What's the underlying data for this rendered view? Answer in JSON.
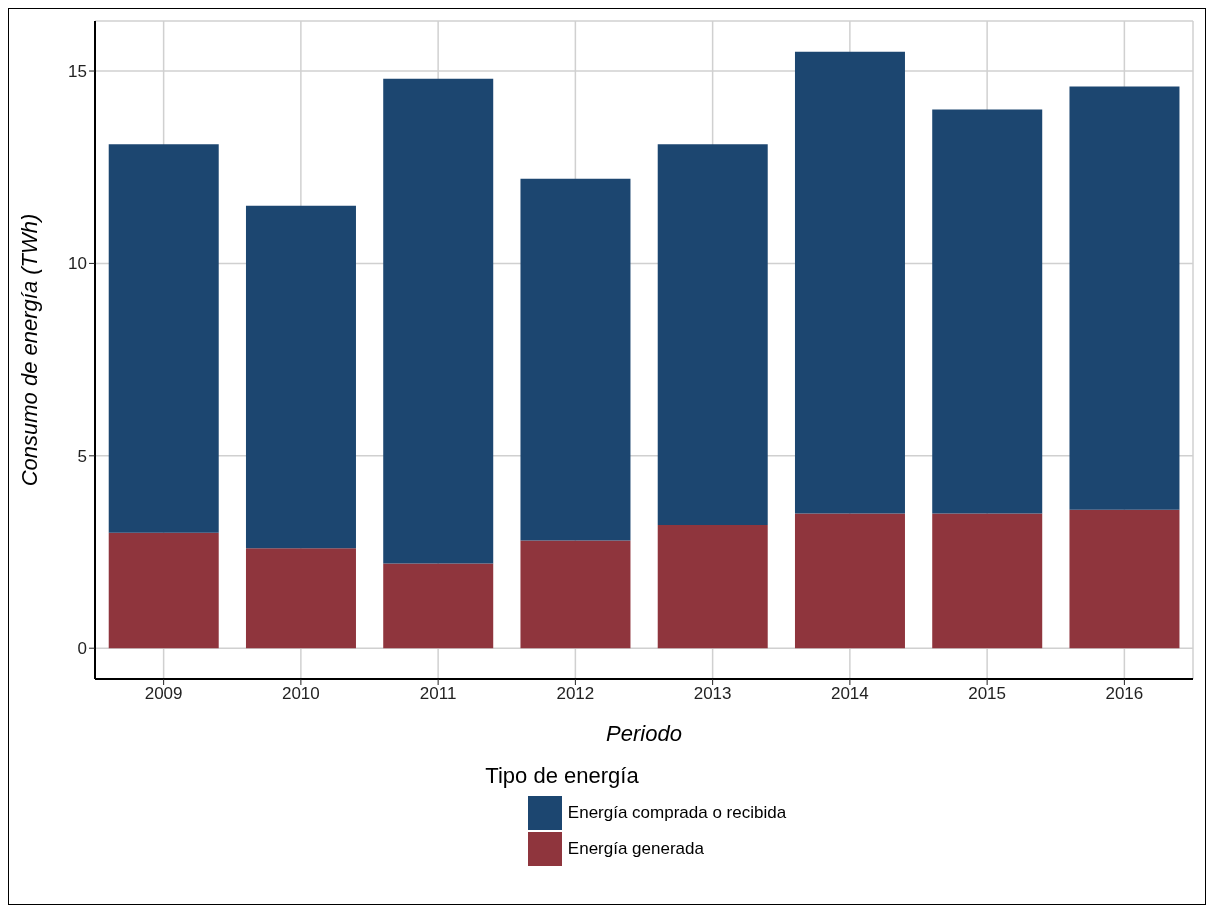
{
  "chart_data": {
    "type": "bar",
    "stacked": true,
    "xlabel": "Periodo",
    "ylabel": "Consumo de energía (TWh)",
    "legend_title": "Tipo de energía",
    "categories": [
      "2009",
      "2010",
      "2011",
      "2012",
      "2013",
      "2014",
      "2015",
      "2016"
    ],
    "series": [
      {
        "name": "Energía generada",
        "color": "#8f353d",
        "values": [
          3.0,
          2.6,
          2.2,
          2.8,
          3.2,
          3.5,
          3.5,
          3.6
        ]
      },
      {
        "name": "Energía comprada o recibida",
        "color": "#1c4670",
        "values": [
          10.1,
          8.9,
          12.6,
          9.4,
          9.9,
          12.0,
          10.5,
          11.0
        ]
      }
    ],
    "ylim": [
      -0.8,
      16.3
    ],
    "yticks": [
      0,
      5,
      10,
      15
    ],
    "grid": true,
    "legend": "bottom"
  }
}
